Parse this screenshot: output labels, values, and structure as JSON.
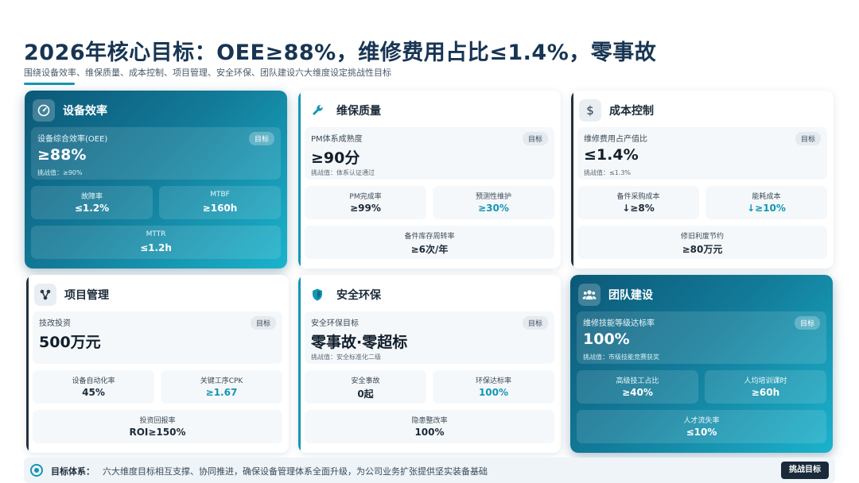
{
  "header": {
    "title": "2026年核心目标：OEE≥88%，维修费用占比≤1.4%，零事故",
    "subtitle": "围绕设备效率、维保质量、成本控制、项目管理、安全环保、团队建设六大维度设定挑战性目标"
  },
  "cards": [
    {
      "title": "设备效率",
      "icon": "gauge-icon",
      "main": {
        "label": "设备综合效率(OEE)",
        "badge": "目标",
        "value": "≥88%",
        "challenge": "挑战值：≥90%"
      },
      "metrics": [
        {
          "label": "故障率",
          "value": "≤1.2%"
        },
        {
          "label": "MTBF",
          "value": "≥160h"
        },
        {
          "label": "MTTR",
          "value": "≤1.2h"
        }
      ]
    },
    {
      "title": "维保质量",
      "icon": "wrench-icon",
      "main": {
        "label": "PM体系成熟度",
        "badge": "目标",
        "value": "≥90分",
        "challenge": "挑战值：体系认证通过"
      },
      "metrics": [
        {
          "label": "PM完成率",
          "value": "≥99%"
        },
        {
          "label": "预测性维护",
          "value": "≥30%"
        },
        {
          "label": "备件库存周转率",
          "value": "≥6次/年"
        }
      ]
    },
    {
      "title": "成本控制",
      "icon": "dollar-icon",
      "main": {
        "label": "维修费用占产值比",
        "badge": "目标",
        "value": "≤1.4%",
        "challenge": "挑战值：≤1.3%"
      },
      "metrics": [
        {
          "label": "备件采购成本",
          "value": "↓≥8%"
        },
        {
          "label": "能耗成本",
          "value": "↓≥10%"
        },
        {
          "label": "修旧利废节约",
          "value": "≥80万元"
        }
      ]
    },
    {
      "title": "项目管理",
      "icon": "network-icon",
      "main": {
        "label": "技改投资",
        "badge": "目标",
        "value": "500万元",
        "challenge": ""
      },
      "metrics": [
        {
          "label": "设备自动化率",
          "value": "45%"
        },
        {
          "label": "关键工序CPK",
          "value": "≥1.67"
        },
        {
          "label": "投资回报率",
          "value": "ROI≥150%"
        }
      ]
    },
    {
      "title": "安全环保",
      "icon": "shield-icon",
      "main": {
        "label": "安全环保目标",
        "badge": "目标",
        "value": "零事故·零超标",
        "challenge": "挑战值：安全标准化二级"
      },
      "metrics": [
        {
          "label": "安全事故",
          "value": "0起"
        },
        {
          "label": "环保达标率",
          "value": "100%"
        },
        {
          "label": "隐患整改率",
          "value": "100%"
        }
      ]
    },
    {
      "title": "团队建设",
      "icon": "team-icon",
      "main": {
        "label": "维修技能等级达标率",
        "badge": "目标",
        "value": "100%",
        "challenge": "挑战值：市级技能竞赛获奖"
      },
      "metrics": [
        {
          "label": "高级技工占比",
          "value": "≥40%"
        },
        {
          "label": "人均培训课时",
          "value": "≥60h"
        },
        {
          "label": "人才流失率",
          "value": "≤10%"
        }
      ]
    }
  ],
  "footer": {
    "label": "目标体系：",
    "text": "六大维度目标相互支撑、协同推进，确保设备管理体系全面升级，为公司业务扩张提供坚实装备基础",
    "button": "挑战目标"
  },
  "colors": {
    "accent": "#1496b3",
    "dark_card_start": "#0c5877",
    "dark_card_end": "#1bb3cc",
    "title": "#173553"
  }
}
